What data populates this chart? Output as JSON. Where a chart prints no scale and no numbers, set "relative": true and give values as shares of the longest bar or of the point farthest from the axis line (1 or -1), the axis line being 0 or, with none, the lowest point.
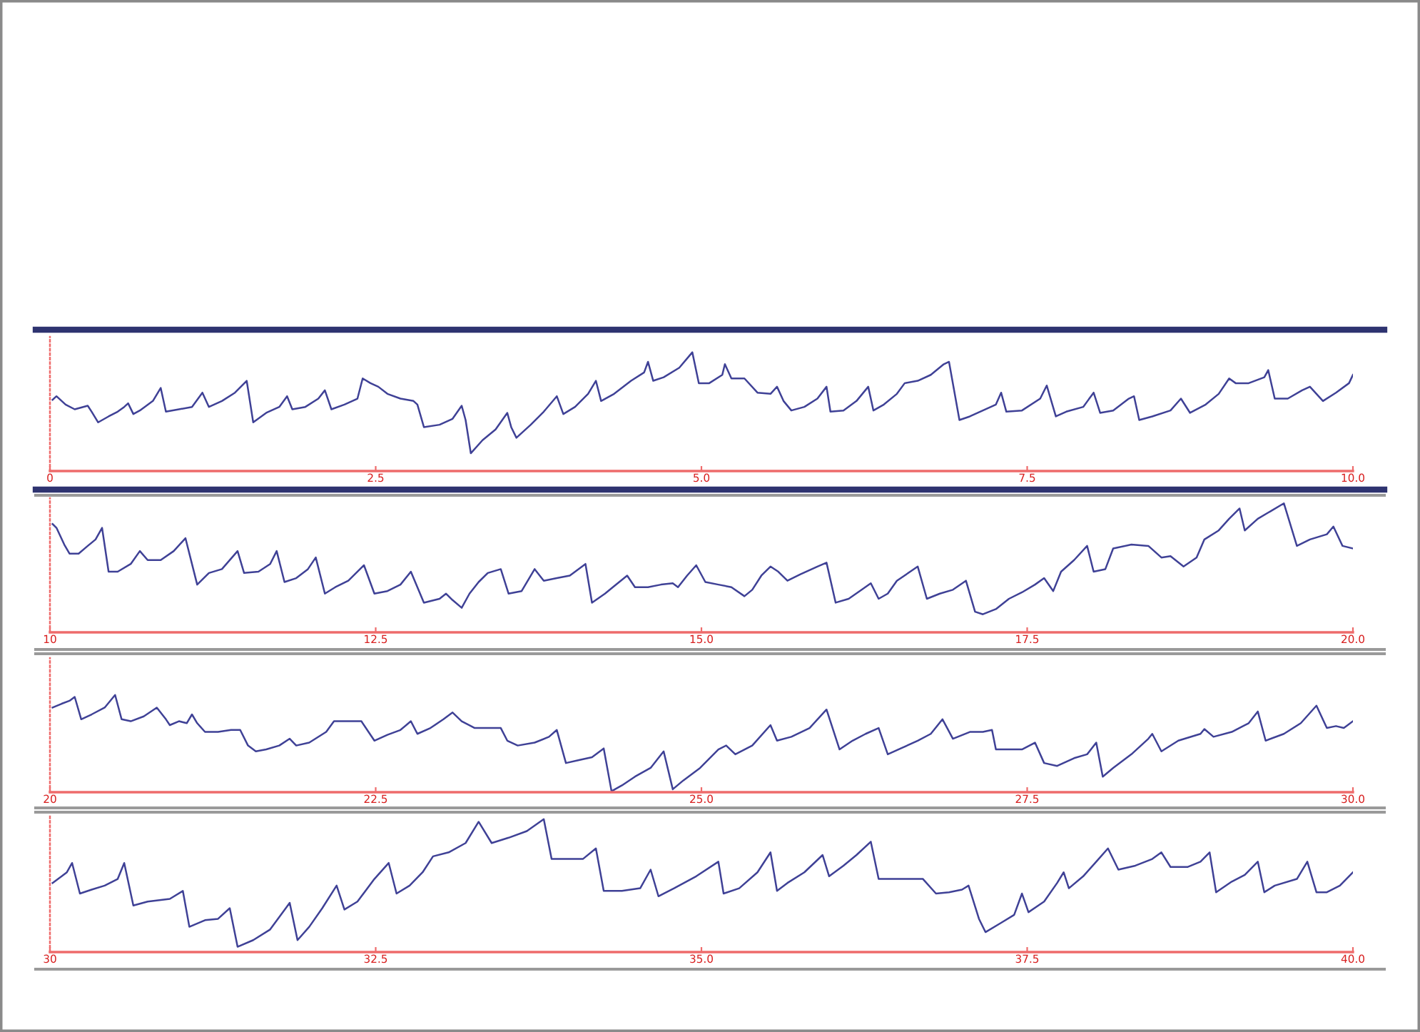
{
  "chart_data": [
    {
      "type": "line",
      "relative": true,
      "xlim": [
        0,
        10
      ],
      "xticks": [
        0,
        2.5,
        {
          "value": 5,
          "label": "5.0"
        },
        7.5,
        {
          "value": 10,
          "label": "10.0"
        }
      ],
      "x": [
        0.02,
        0.05,
        0.12,
        0.19,
        0.29,
        0.32,
        0.37,
        0.45,
        0.52,
        0.57,
        0.6,
        0.64,
        0.69,
        0.79,
        0.85,
        0.89,
        0.99,
        1.09,
        1.17,
        1.22,
        1.32,
        1.42,
        1.51,
        1.56,
        1.66,
        1.76,
        1.82,
        1.86,
        1.96,
        2.06,
        2.11,
        2.16,
        2.26,
        2.36,
        2.4,
        2.46,
        2.52,
        2.59,
        2.69,
        2.79,
        2.82,
        2.87,
        2.99,
        3.09,
        3.16,
        3.19,
        3.23,
        3.32,
        3.42,
        3.51,
        3.54,
        3.58,
        3.69,
        3.79,
        3.89,
        3.94,
        4.03,
        4.13,
        4.19,
        4.23,
        4.33,
        4.46,
        4.56,
        4.59,
        4.63,
        4.71,
        4.83,
        4.93,
        4.98,
        5.06,
        5.16,
        5.18,
        5.23,
        5.33,
        5.43,
        5.53,
        5.58,
        5.63,
        5.69,
        5.79,
        5.89,
        5.96,
        5.99,
        6.09,
        6.19,
        6.28,
        6.32,
        6.4,
        6.5,
        6.56,
        6.66,
        6.76,
        6.86,
        6.9,
        6.98,
        7.06,
        7.16,
        7.26,
        7.3,
        7.34,
        7.46,
        7.6,
        7.65,
        7.72,
        7.8,
        7.93,
        8.01,
        8.06,
        8.16,
        8.28,
        8.32,
        8.36,
        8.46,
        8.6,
        8.68,
        8.75,
        8.87,
        8.97,
        9.05,
        9.1,
        9.2,
        9.32,
        9.35,
        9.4,
        9.5,
        9.61,
        9.67,
        9.72,
        9.77,
        9.87,
        9.97,
        10.0
      ],
      "series": [
        {
          "color": "#3f4196",
          "values": [
            0.6,
            0.63,
            0.56,
            0.52,
            0.55,
            0.5,
            0.41,
            0.46,
            0.5,
            0.54,
            0.57,
            0.48,
            0.51,
            0.59,
            0.7,
            0.5,
            0.52,
            0.54,
            0.66,
            0.54,
            0.59,
            0.66,
            0.76,
            0.41,
            0.49,
            0.54,
            0.63,
            0.52,
            0.54,
            0.61,
            0.68,
            0.52,
            0.56,
            0.61,
            0.78,
            0.74,
            0.71,
            0.65,
            0.61,
            0.59,
            0.56,
            0.37,
            0.39,
            0.44,
            0.55,
            0.43,
            0.15,
            0.26,
            0.35,
            0.49,
            0.37,
            0.28,
            0.39,
            0.5,
            0.63,
            0.48,
            0.54,
            0.65,
            0.76,
            0.59,
            0.65,
            0.76,
            0.83,
            0.92,
            0.76,
            0.79,
            0.87,
            1.0,
            0.74,
            0.74,
            0.81,
            0.9,
            0.78,
            0.78,
            0.66,
            0.65,
            0.71,
            0.59,
            0.51,
            0.54,
            0.61,
            0.71,
            0.5,
            0.51,
            0.59,
            0.71,
            0.51,
            0.56,
            0.65,
            0.74,
            0.76,
            0.81,
            0.9,
            0.92,
            0.43,
            0.46,
            0.51,
            0.56,
            0.66,
            0.5,
            0.51,
            0.61,
            0.72,
            0.46,
            0.5,
            0.54,
            0.66,
            0.49,
            0.51,
            0.61,
            0.63,
            0.43,
            0.46,
            0.51,
            0.61,
            0.49,
            0.56,
            0.65,
            0.78,
            0.74,
            0.74,
            0.79,
            0.85,
            0.61,
            0.61,
            0.68,
            0.71,
            0.65,
            0.59,
            0.66,
            0.74,
            0.81
          ]
        }
      ]
    },
    {
      "type": "line",
      "relative": true,
      "xlim": [
        10,
        20
      ],
      "xticks": [
        10,
        12.5,
        {
          "value": 15,
          "label": "15.0"
        },
        17.5,
        {
          "value": 20,
          "label": "20.0"
        }
      ],
      "x": [
        10.02,
        10.05,
        10.11,
        10.15,
        10.22,
        10.29,
        10.35,
        10.4,
        10.45,
        10.52,
        10.62,
        10.69,
        10.75,
        10.85,
        10.95,
        11.04,
        11.13,
        11.22,
        11.32,
        11.44,
        11.49,
        11.6,
        11.69,
        11.74,
        11.8,
        11.89,
        11.98,
        12.04,
        12.11,
        12.19,
        12.29,
        12.41,
        12.49,
        12.59,
        12.69,
        12.77,
        12.87,
        12.99,
        13.04,
        13.09,
        13.16,
        13.22,
        13.29,
        13.36,
        13.46,
        13.52,
        13.62,
        13.72,
        13.79,
        13.89,
        13.99,
        14.11,
        14.16,
        14.26,
        14.32,
        14.43,
        14.49,
        14.59,
        14.69,
        14.78,
        14.82,
        14.89,
        14.96,
        15.03,
        15.13,
        15.23,
        15.33,
        15.39,
        15.46,
        15.53,
        15.59,
        15.66,
        15.76,
        15.89,
        15.96,
        16.03,
        16.13,
        16.23,
        16.3,
        16.36,
        16.43,
        16.5,
        16.66,
        16.73,
        16.83,
        16.93,
        17.03,
        17.1,
        17.16,
        17.26,
        17.36,
        17.46,
        17.56,
        17.63,
        17.7,
        17.76,
        17.86,
        17.96,
        18.01,
        18.1,
        18.16,
        18.3,
        18.43,
        18.53,
        18.6,
        18.7,
        18.8,
        18.86,
        18.97,
        19.05,
        19.13,
        19.17,
        19.27,
        19.37,
        19.47,
        19.57,
        19.67,
        19.8,
        19.85,
        19.92,
        20.0
      ],
      "series": [
        {
          "color": "#3f4196",
          "values": [
            0.84,
            0.81,
            0.68,
            0.61,
            0.61,
            0.67,
            0.72,
            0.81,
            0.47,
            0.47,
            0.53,
            0.63,
            0.56,
            0.56,
            0.63,
            0.73,
            0.37,
            0.46,
            0.49,
            0.63,
            0.46,
            0.47,
            0.53,
            0.63,
            0.39,
            0.42,
            0.49,
            0.58,
            0.3,
            0.35,
            0.4,
            0.52,
            0.3,
            0.32,
            0.37,
            0.47,
            0.23,
            0.26,
            0.3,
            0.25,
            0.19,
            0.3,
            0.39,
            0.46,
            0.49,
            0.3,
            0.32,
            0.49,
            0.4,
            0.42,
            0.44,
            0.53,
            0.23,
            0.3,
            0.35,
            0.44,
            0.35,
            0.35,
            0.37,
            0.38,
            0.35,
            0.44,
            0.52,
            0.39,
            0.37,
            0.35,
            0.28,
            0.33,
            0.44,
            0.51,
            0.47,
            0.4,
            0.45,
            0.51,
            0.54,
            0.23,
            0.26,
            0.33,
            0.38,
            0.26,
            0.3,
            0.4,
            0.51,
            0.26,
            0.3,
            0.33,
            0.4,
            0.16,
            0.14,
            0.18,
            0.26,
            0.31,
            0.37,
            0.42,
            0.32,
            0.47,
            0.56,
            0.67,
            0.47,
            0.49,
            0.65,
            0.68,
            0.67,
            0.58,
            0.59,
            0.51,
            0.58,
            0.72,
            0.79,
            0.88,
            0.96,
            0.79,
            0.88,
            0.94,
            1.0,
            0.67,
            0.72,
            0.76,
            0.82,
            0.67,
            0.65
          ]
        }
      ]
    },
    {
      "type": "line",
      "relative": true,
      "xlim": [
        20,
        30
      ],
      "xticks": [
        20,
        22.5,
        {
          "value": 25,
          "label": "25.0"
        },
        27.5,
        {
          "value": 30,
          "label": "30.0"
        }
      ],
      "x": [
        20.02,
        20.09,
        20.15,
        20.19,
        20.24,
        20.32,
        20.42,
        20.5,
        20.55,
        20.62,
        20.72,
        20.82,
        20.89,
        20.92,
        20.99,
        21.05,
        21.09,
        21.13,
        21.19,
        21.29,
        21.39,
        21.46,
        21.52,
        21.58,
        21.66,
        21.76,
        21.84,
        21.89,
        21.99,
        22.12,
        22.18,
        22.29,
        22.39,
        22.49,
        22.59,
        22.69,
        22.77,
        22.82,
        22.92,
        23.02,
        23.09,
        23.16,
        23.26,
        23.46,
        23.51,
        23.59,
        23.72,
        23.83,
        23.89,
        23.96,
        24.06,
        24.16,
        24.25,
        24.31,
        24.39,
        24.49,
        24.61,
        24.71,
        24.78,
        24.86,
        24.99,
        25.13,
        25.19,
        25.26,
        25.39,
        25.53,
        25.58,
        25.69,
        25.83,
        25.96,
        26.06,
        26.16,
        26.26,
        26.36,
        26.43,
        26.53,
        26.66,
        26.76,
        26.85,
        26.93,
        27.06,
        27.16,
        27.23,
        27.26,
        27.36,
        27.46,
        27.56,
        27.63,
        27.73,
        27.86,
        27.96,
        28.03,
        28.08,
        28.16,
        28.3,
        28.43,
        28.46,
        28.53,
        28.66,
        28.83,
        28.86,
        28.93,
        29.07,
        29.2,
        29.27,
        29.33,
        29.47,
        29.6,
        29.72,
        29.8,
        29.87,
        29.93,
        30.0
      ],
      "series": [
        {
          "color": "#3f4196",
          "values": [
            0.87,
            0.91,
            0.94,
            0.98,
            0.75,
            0.8,
            0.87,
            1.0,
            0.75,
            0.73,
            0.78,
            0.87,
            0.75,
            0.69,
            0.73,
            0.71,
            0.8,
            0.71,
            0.62,
            0.62,
            0.64,
            0.64,
            0.48,
            0.42,
            0.44,
            0.48,
            0.55,
            0.48,
            0.51,
            0.62,
            0.73,
            0.73,
            0.73,
            0.53,
            0.59,
            0.64,
            0.73,
            0.6,
            0.66,
            0.75,
            0.82,
            0.73,
            0.66,
            0.66,
            0.53,
            0.48,
            0.51,
            0.57,
            0.64,
            0.3,
            0.33,
            0.36,
            0.45,
            0.01,
            0.07,
            0.16,
            0.25,
            0.42,
            0.03,
            0.12,
            0.25,
            0.44,
            0.48,
            0.39,
            0.48,
            0.69,
            0.53,
            0.57,
            0.66,
            0.85,
            0.44,
            0.53,
            0.6,
            0.66,
            0.39,
            0.45,
            0.53,
            0.6,
            0.75,
            0.55,
            0.62,
            0.62,
            0.64,
            0.44,
            0.44,
            0.44,
            0.51,
            0.3,
            0.27,
            0.35,
            0.39,
            0.51,
            0.16,
            0.25,
            0.39,
            0.55,
            0.6,
            0.42,
            0.53,
            0.6,
            0.65,
            0.57,
            0.62,
            0.71,
            0.83,
            0.53,
            0.6,
            0.71,
            0.89,
            0.66,
            0.68,
            0.66,
            0.73
          ]
        }
      ]
    },
    {
      "type": "line",
      "relative": true,
      "xlim": [
        30,
        40
      ],
      "xticks": [
        30,
        32.5,
        {
          "value": 35,
          "label": "35.0"
        },
        37.5,
        {
          "value": 40,
          "label": "40.0"
        }
      ],
      "x": [
        30.02,
        30.09,
        30.13,
        30.17,
        30.23,
        30.32,
        30.42,
        30.52,
        30.57,
        30.64,
        30.75,
        30.92,
        31.02,
        31.07,
        31.19,
        31.29,
        31.38,
        31.44,
        31.56,
        31.69,
        31.84,
        31.9,
        31.99,
        32.09,
        32.2,
        32.26,
        32.36,
        32.49,
        32.6,
        32.66,
        32.76,
        32.86,
        32.94,
        33.06,
        33.19,
        33.29,
        33.39,
        33.52,
        33.66,
        33.79,
        33.85,
        33.96,
        34.09,
        34.19,
        34.25,
        34.39,
        34.53,
        34.61,
        34.67,
        34.79,
        34.96,
        35.13,
        35.17,
        35.29,
        35.43,
        35.53,
        35.58,
        35.66,
        35.79,
        35.93,
        35.98,
        36.09,
        36.19,
        36.3,
        36.36,
        36.53,
        36.7,
        36.8,
        36.9,
        37.0,
        37.05,
        37.13,
        37.18,
        37.3,
        37.4,
        37.46,
        37.51,
        37.63,
        37.73,
        37.78,
        37.82,
        37.93,
        38.03,
        38.12,
        38.2,
        38.33,
        38.46,
        38.53,
        38.6,
        38.73,
        38.83,
        38.9,
        38.95,
        39.07,
        39.17,
        39.27,
        39.32,
        39.4,
        39.57,
        39.65,
        39.72,
        39.8,
        39.9,
        40.0
      ],
      "series": [
        {
          "color": "#3f4196",
          "values": [
            0.52,
            0.57,
            0.6,
            0.67,
            0.44,
            0.47,
            0.5,
            0.55,
            0.67,
            0.35,
            0.38,
            0.4,
            0.46,
            0.19,
            0.24,
            0.25,
            0.33,
            0.04,
            0.09,
            0.17,
            0.37,
            0.09,
            0.19,
            0.33,
            0.5,
            0.32,
            0.38,
            0.55,
            0.67,
            0.44,
            0.5,
            0.6,
            0.72,
            0.75,
            0.82,
            0.98,
            0.82,
            0.86,
            0.91,
            1.0,
            0.7,
            0.7,
            0.7,
            0.78,
            0.46,
            0.46,
            0.48,
            0.62,
            0.42,
            0.48,
            0.57,
            0.68,
            0.44,
            0.48,
            0.6,
            0.75,
            0.46,
            0.52,
            0.6,
            0.73,
            0.57,
            0.65,
            0.73,
            0.83,
            0.55,
            0.55,
            0.55,
            0.44,
            0.45,
            0.47,
            0.5,
            0.25,
            0.15,
            0.22,
            0.28,
            0.44,
            0.3,
            0.38,
            0.52,
            0.6,
            0.48,
            0.57,
            0.68,
            0.78,
            0.62,
            0.65,
            0.7,
            0.75,
            0.64,
            0.64,
            0.68,
            0.75,
            0.45,
            0.53,
            0.58,
            0.68,
            0.45,
            0.5,
            0.55,
            0.68,
            0.45,
            0.45,
            0.5,
            0.6
          ]
        }
      ]
    }
  ]
}
